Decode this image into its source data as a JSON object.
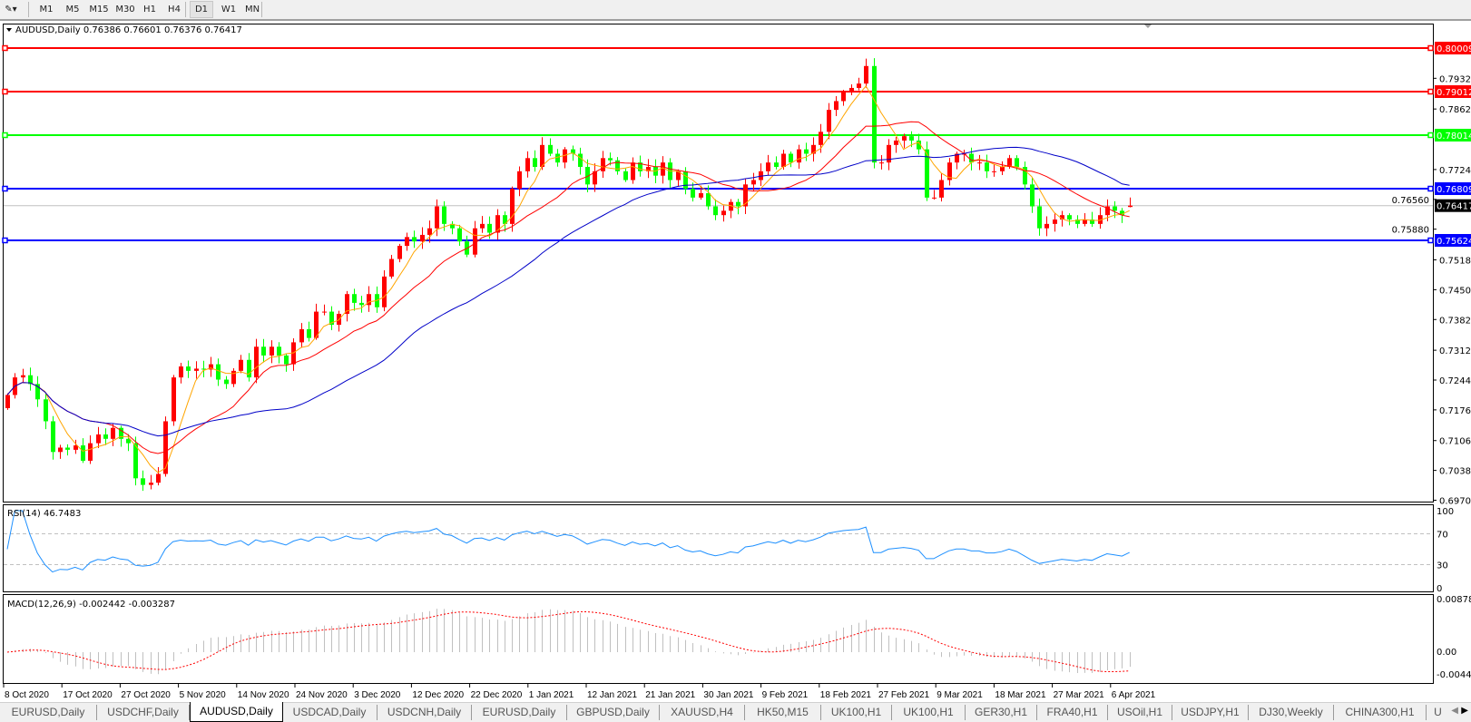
{
  "toolbar": {
    "timeframes": [
      "M1",
      "M5",
      "M15",
      "M30",
      "H1",
      "H4",
      "D1",
      "W1",
      "MN"
    ],
    "active": "D1"
  },
  "chart": {
    "header": "AUDUSD,Daily  0.76386 0.76601 0.76376 0.76417",
    "price_axis": [
      "0.79320",
      "0.78620",
      "0.77240",
      "0.76560",
      "0.75880",
      "0.75180",
      "0.74500",
      "0.73820",
      "0.73120",
      "0.72440",
      "0.71760",
      "0.71060",
      "0.70380",
      "0.69700"
    ],
    "levels": [
      {
        "price": "0.80009",
        "color": "#ff0000"
      },
      {
        "price": "0.79012",
        "color": "#ff0000"
      },
      {
        "price": "0.78014",
        "color": "#00ff00"
      },
      {
        "price": "0.76809",
        "color": "#0000ff"
      },
      {
        "price": "0.75624",
        "color": "#0000ff"
      }
    ],
    "current_price": "0.76417",
    "bull_color": "#ff0000",
    "bear_color": "#00ff00",
    "ma_colors": [
      "#ffa500",
      "#ff0000",
      "#0000c8"
    ],
    "first_open": 0.718,
    "last_bar": {
      "open": 0.76386,
      "high": 0.76601,
      "low": 0.76376,
      "close": 0.76417
    },
    "closes": [
      0.721,
      0.725,
      0.7255,
      0.7235,
      0.72,
      0.715,
      0.708,
      0.709,
      0.7085,
      0.7095,
      0.706,
      0.71,
      0.712,
      0.711,
      0.7135,
      0.711,
      0.71,
      0.702,
      0.7005,
      0.701,
      0.703,
      0.715,
      0.725,
      0.7275,
      0.7265,
      0.727,
      0.7268,
      0.728,
      0.7245,
      0.7235,
      0.7265,
      0.729,
      0.725,
      0.732,
      0.73,
      0.732,
      0.73,
      0.728,
      0.733,
      0.736,
      0.734,
      0.74,
      0.74,
      0.737,
      0.7395,
      0.744,
      0.742,
      0.7415,
      0.744,
      0.741,
      0.748,
      0.752,
      0.755,
      0.757,
      0.756,
      0.7575,
      0.759,
      0.764,
      0.76,
      0.759,
      0.756,
      0.753,
      0.759,
      0.76,
      0.758,
      0.762,
      0.76,
      0.768,
      0.772,
      0.775,
      0.773,
      0.778,
      0.776,
      0.774,
      0.777,
      0.776,
      0.773,
      0.769,
      0.772,
      0.775,
      0.7745,
      0.772,
      0.77,
      0.774,
      0.772,
      0.773,
      0.771,
      0.774,
      0.77,
      0.772,
      0.768,
      0.766,
      0.767,
      0.764,
      0.762,
      0.763,
      0.765,
      0.764,
      0.769,
      0.77,
      0.772,
      0.774,
      0.773,
      0.776,
      0.774,
      0.777,
      0.776,
      0.778,
      0.781,
      0.786,
      0.788,
      0.79,
      0.791,
      0.792,
      0.796,
      0.774,
      0.774,
      0.778,
      0.779,
      0.78,
      0.779,
      0.777,
      0.766,
      0.766,
      0.77,
      0.774,
      0.776,
      0.776,
      0.774,
      0.774,
      0.772,
      0.772,
      0.773,
      0.775,
      0.773,
      0.769,
      0.764,
      0.759,
      0.76,
      0.761,
      0.762,
      0.761,
      0.76,
      0.761,
      0.76,
      0.762,
      0.764,
      0.763,
      0.762,
      0.76417
    ]
  },
  "rsi": {
    "label": "RSI(14) 46.7483",
    "axis": [
      "100",
      "70",
      "30",
      "0"
    ],
    "color": "#1e90ff"
  },
  "macd": {
    "label": "MACD(12,26,9) -0.002442 -0.003287",
    "axis": [
      "0.008782",
      "0.00",
      "-0.00445"
    ],
    "hist_color": "#c0c0c0",
    "signal_color": "#ff0000"
  },
  "dates": [
    "8 Oct 2020",
    "17 Oct 2020",
    "27 Oct 2020",
    "5 Nov 2020",
    "14 Nov 2020",
    "24 Nov 2020",
    "3 Dec 2020",
    "12 Dec 2020",
    "22 Dec 2020",
    "1 Jan 2021",
    "12 Jan 2021",
    "21 Jan 2021",
    "30 Jan 2021",
    "9 Feb 2021",
    "18 Feb 2021",
    "27 Feb 2021",
    "9 Mar 2021",
    "18 Mar 2021",
    "27 Mar 2021",
    "6 Apr 2021"
  ],
  "tabs": [
    "EURUSD,Daily",
    "USDCHF,Daily",
    "AUDUSD,Daily",
    "USDCAD,Daily",
    "USDCNH,Daily",
    "EURUSD,Daily",
    "GBPUSD,Daily",
    "XAUUSD,H4",
    "HK50,M15",
    "UK100,H1",
    "UK100,H1",
    "GER30,H1",
    "FRA40,H1",
    "USOil,H1",
    "USDJPY,H1",
    "DJ30,Weekly",
    "CHINA300,H1",
    "U"
  ],
  "active_tab": "AUDUSD,Daily"
}
